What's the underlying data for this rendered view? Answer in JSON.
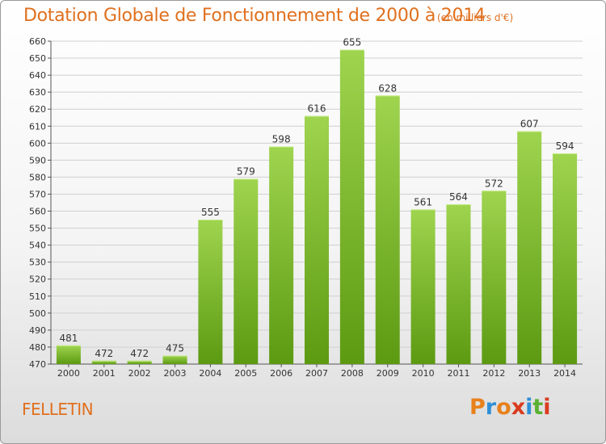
{
  "title": "Dotation Globale de Fonctionnement de 2000 à 2014",
  "unit": "(en milliers d'€)",
  "town": "FELLETIN",
  "logo": {
    "letters": [
      "P",
      "r",
      "o",
      "x",
      "i",
      "t",
      "i"
    ],
    "colors": [
      "#e8811c",
      "#2f8fd6",
      "#e8811c",
      "#d93b1f",
      "#2f8fd6",
      "#5ab032",
      "#d93b1f"
    ]
  },
  "colors": {
    "accent": "#e0701e",
    "bar_top": "#9fd44f",
    "bar_bottom": "#5c9a12",
    "grid": "#d0d0d0"
  },
  "chart_data": {
    "type": "bar",
    "categories": [
      "2000",
      "2001",
      "2002",
      "2003",
      "2004",
      "2005",
      "2006",
      "2007",
      "2008",
      "2009",
      "2010",
      "2011",
      "2012",
      "2013",
      "2014"
    ],
    "values": [
      481,
      472,
      472,
      475,
      555,
      579,
      598,
      616,
      655,
      628,
      561,
      564,
      572,
      607,
      594
    ],
    "ylim": [
      470,
      660
    ],
    "yticks": [
      470,
      480,
      490,
      500,
      510,
      520,
      530,
      540,
      550,
      560,
      570,
      580,
      590,
      600,
      610,
      620,
      630,
      640,
      650,
      660
    ],
    "grid": true,
    "legend": "none"
  }
}
